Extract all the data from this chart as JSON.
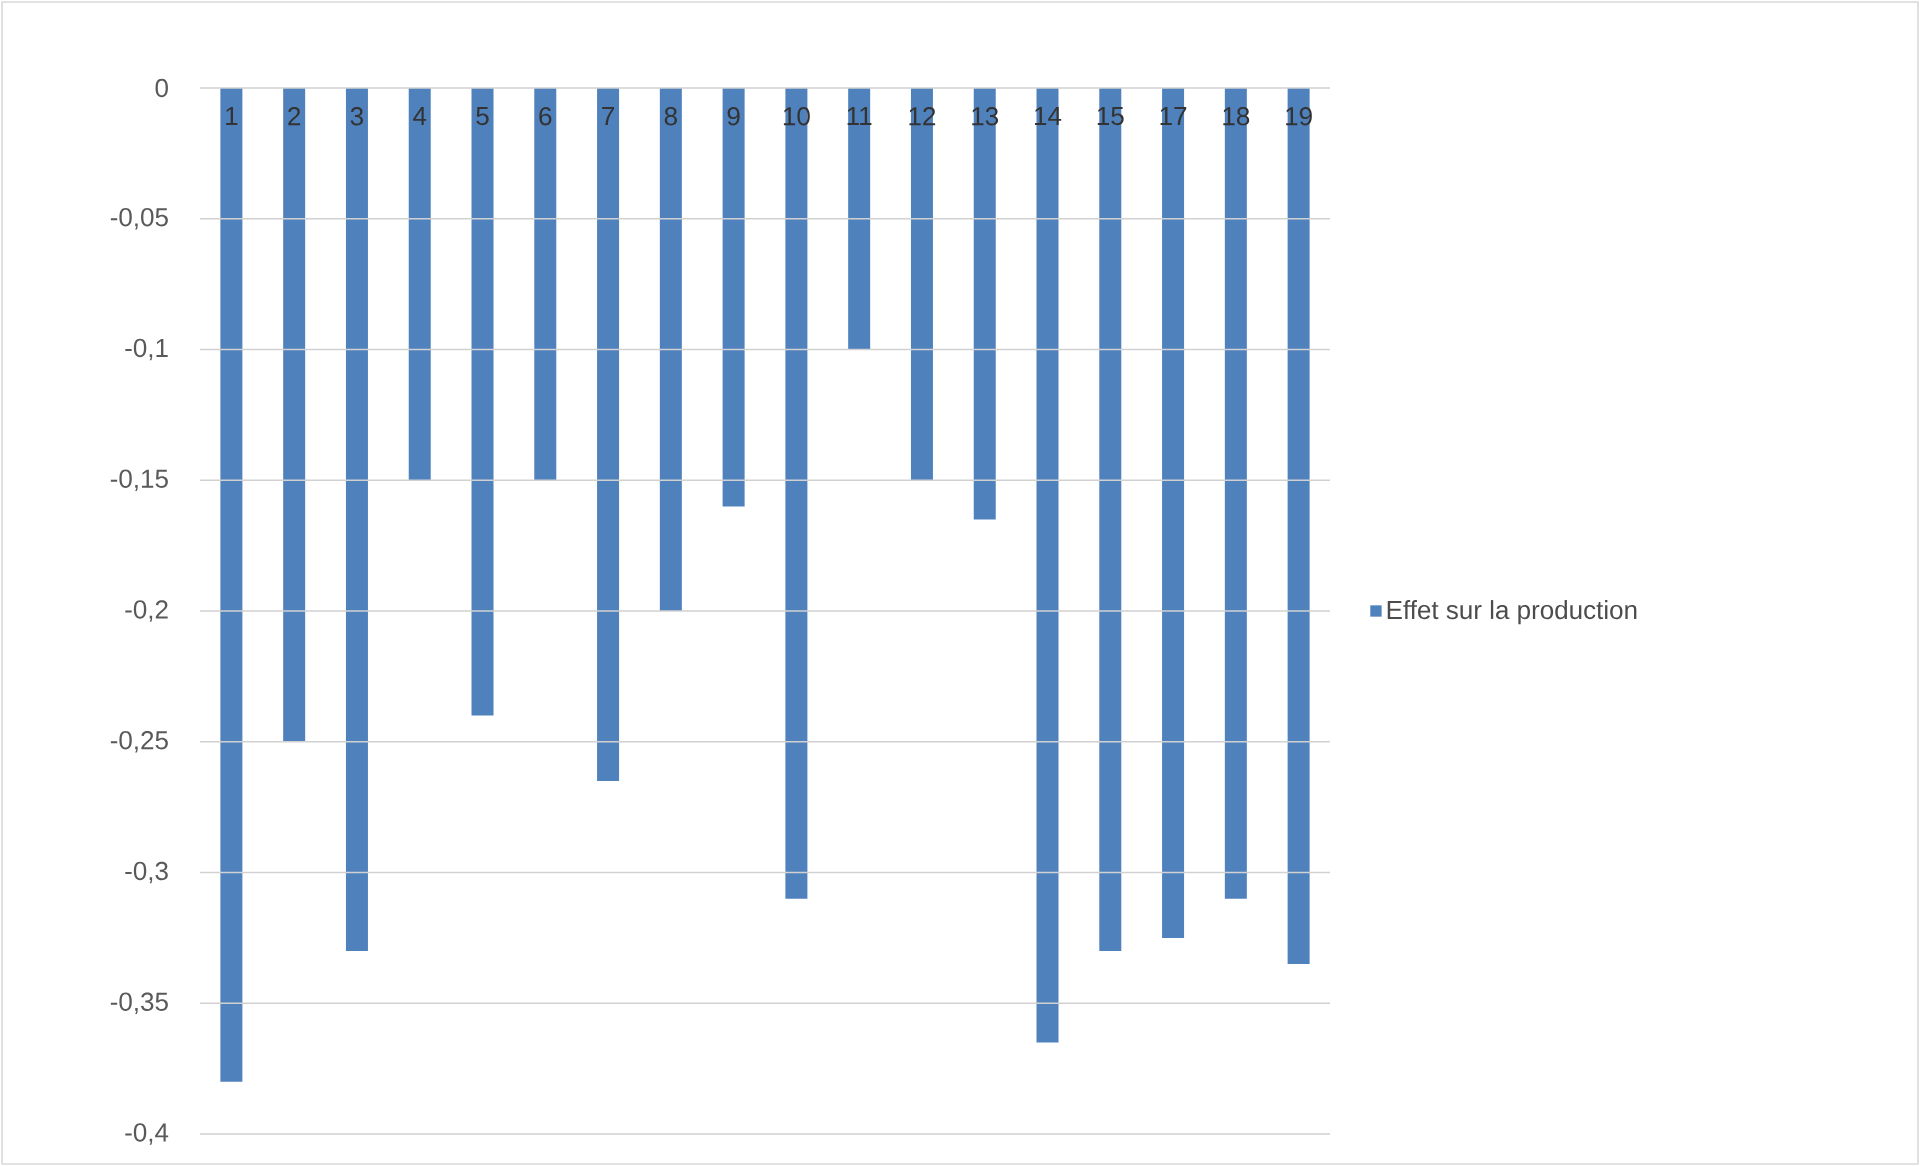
{
  "chart_data": {
    "type": "bar",
    "categories": [
      "1",
      "2",
      "3",
      "4",
      "5",
      "6",
      "7",
      "8",
      "9",
      "10",
      "11",
      "12",
      "13",
      "14",
      "15",
      "17",
      "18",
      "19"
    ],
    "series": [
      {
        "name": "Effet sur la production",
        "color": "#4f81bd",
        "values": [
          -0.38,
          -0.25,
          -0.33,
          -0.15,
          -0.24,
          -0.15,
          -0.265,
          -0.2,
          -0.16,
          -0.31,
          -0.1,
          -0.15,
          -0.165,
          -0.365,
          -0.33,
          -0.325,
          -0.31,
          -0.335
        ]
      }
    ],
    "ylim": [
      -0.4,
      0
    ],
    "yticks": [
      0,
      {
        "value": -0.05,
        "label": "-0,05"
      },
      {
        "value": -0.1,
        "label": "-0,1"
      },
      {
        "value": -0.15,
        "label": "-0,15"
      },
      {
        "value": -0.2,
        "label": "-0,2"
      },
      {
        "value": -0.25,
        "label": "-0,25"
      },
      {
        "value": -0.3,
        "label": "-0,3"
      },
      {
        "value": -0.35,
        "label": "-0,35"
      },
      {
        "value": -0.4,
        "label": "-0,4"
      }
    ],
    "grid": "y",
    "legend": "right"
  }
}
